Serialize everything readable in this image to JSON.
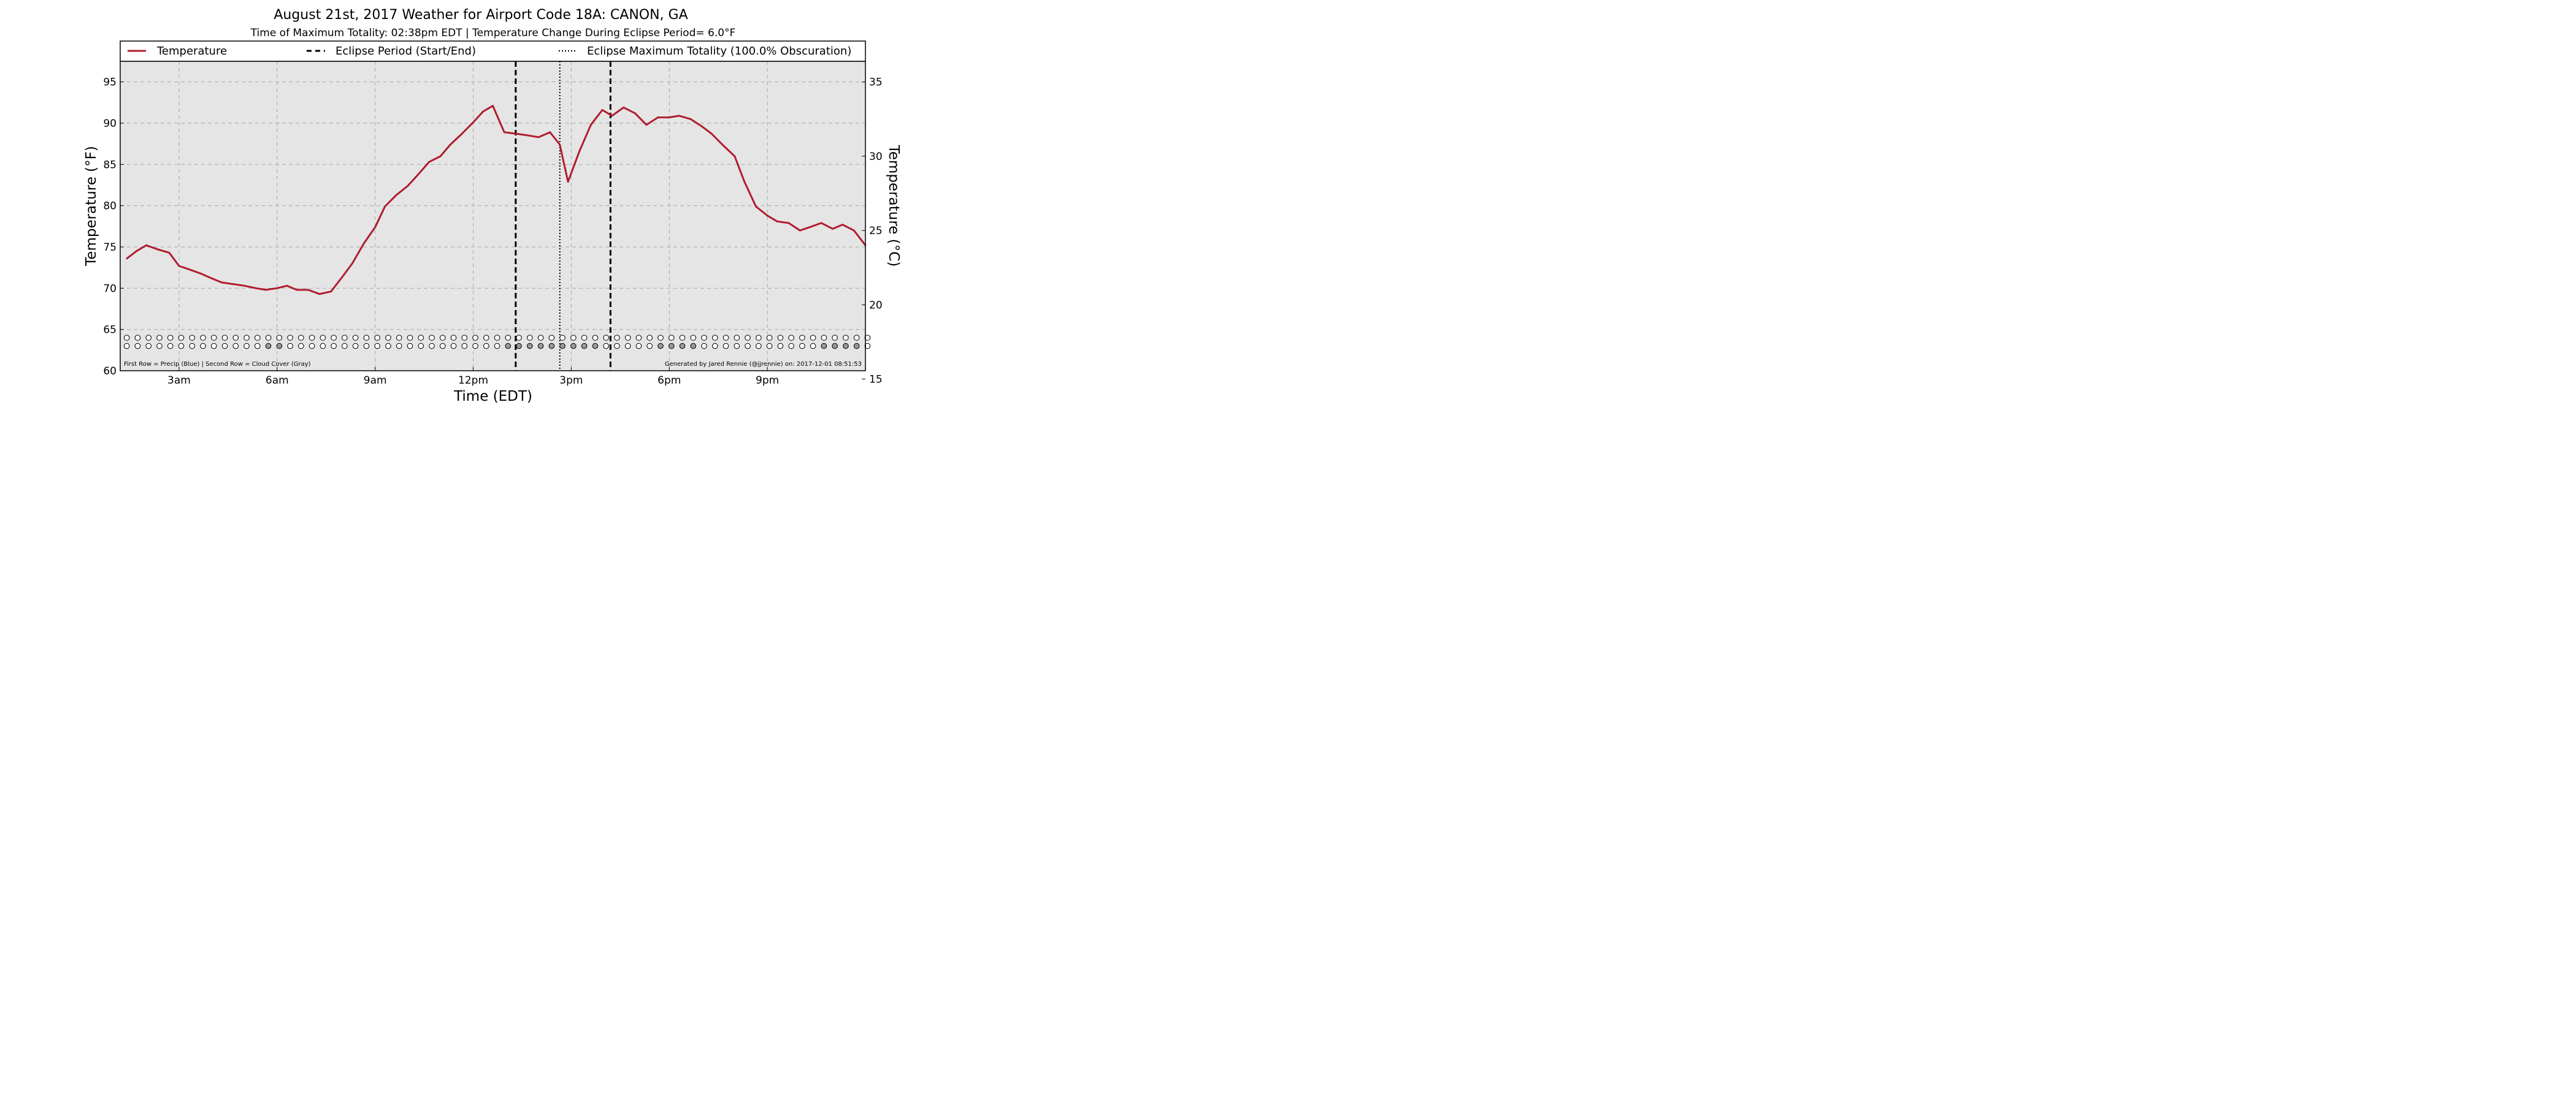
{
  "chart_data": {
    "type": "line",
    "title": "August 21st, 2017 Weather for Airport Code 18A: CANON, GA",
    "subtitle": "Time of Maximum Totality: 02:38pm EDT | Temperature Change During Eclipse Period= 6.0°F",
    "xlabel": "Time (EDT)",
    "ylabel": "Temperature (°F)",
    "ylabel_right": "Temperature (°C)",
    "xlim": [
      1.2,
      24.0
    ],
    "ylim": [
      60,
      97.5
    ],
    "ylim_right": [
      15.56,
      36.39
    ],
    "x_unit": "hours since midnight EDT",
    "x_ticks": [
      {
        "x": 3,
        "label": "3am"
      },
      {
        "x": 6,
        "label": "6am"
      },
      {
        "x": 9,
        "label": "9am"
      },
      {
        "x": 12,
        "label": "12pm"
      },
      {
        "x": 15,
        "label": "3pm"
      },
      {
        "x": 18,
        "label": "6pm"
      },
      {
        "x": 21,
        "label": "9pm"
      }
    ],
    "y_ticks": [
      60,
      65,
      70,
      75,
      80,
      85,
      90,
      95
    ],
    "y_ticks_right": [
      15,
      20,
      25,
      30,
      35
    ],
    "grid": true,
    "legend_position": "top",
    "legend": [
      {
        "label": "Temperature",
        "style": "solid",
        "color": "#b01c2e"
      },
      {
        "label": "Eclipse Period (Start/End)",
        "style": "dashed",
        "color": "#000000"
      },
      {
        "label": "Eclipse Maximum Totality (100.0% Obscuration)",
        "style": "dotted",
        "color": "#000000"
      }
    ],
    "series": [
      {
        "name": "Temperature",
        "color": "#b01c2e",
        "points": [
          [
            1.4,
            73.6
          ],
          [
            1.7,
            74.5
          ],
          [
            2.0,
            75.2
          ],
          [
            2.35,
            74.7
          ],
          [
            2.7,
            74.3
          ],
          [
            3.0,
            72.7
          ],
          [
            3.3,
            72.3
          ],
          [
            3.65,
            71.8
          ],
          [
            4.0,
            71.2
          ],
          [
            4.3,
            70.7
          ],
          [
            4.65,
            70.5
          ],
          [
            5.0,
            70.3
          ],
          [
            5.35,
            70.0
          ],
          [
            5.65,
            69.8
          ],
          [
            6.0,
            70.0
          ],
          [
            6.3,
            70.3
          ],
          [
            6.6,
            69.8
          ],
          [
            6.95,
            69.8
          ],
          [
            7.3,
            69.3
          ],
          [
            7.65,
            69.6
          ],
          [
            8.0,
            71.4
          ],
          [
            8.3,
            73.0
          ],
          [
            8.65,
            75.4
          ],
          [
            9.0,
            77.4
          ],
          [
            9.3,
            79.9
          ],
          [
            9.65,
            81.3
          ],
          [
            10.0,
            82.4
          ],
          [
            10.3,
            83.7
          ],
          [
            10.65,
            85.3
          ],
          [
            11.0,
            86.0
          ],
          [
            11.3,
            87.4
          ],
          [
            11.65,
            88.7
          ],
          [
            12.0,
            90.1
          ],
          [
            12.3,
            91.4
          ],
          [
            12.6,
            92.1
          ],
          [
            12.95,
            88.9
          ],
          [
            13.35,
            88.7
          ],
          [
            13.7,
            88.5
          ],
          [
            14.0,
            88.3
          ],
          [
            14.35,
            88.9
          ],
          [
            14.65,
            87.4
          ],
          [
            14.9,
            82.9
          ],
          [
            15.25,
            86.6
          ],
          [
            15.6,
            89.8
          ],
          [
            15.95,
            91.6
          ],
          [
            16.25,
            90.9
          ],
          [
            16.6,
            91.9
          ],
          [
            16.95,
            91.2
          ],
          [
            17.3,
            89.8
          ],
          [
            17.65,
            90.7
          ],
          [
            18.0,
            90.7
          ],
          [
            18.3,
            90.9
          ],
          [
            18.65,
            90.5
          ],
          [
            19.0,
            89.6
          ],
          [
            19.3,
            88.7
          ],
          [
            19.65,
            87.3
          ],
          [
            20.0,
            86.0
          ],
          [
            20.3,
            82.9
          ],
          [
            20.65,
            79.9
          ],
          [
            21.0,
            78.8
          ],
          [
            21.3,
            78.1
          ],
          [
            21.65,
            77.9
          ],
          [
            22.0,
            77.0
          ],
          [
            22.3,
            77.4
          ],
          [
            22.65,
            77.9
          ],
          [
            23.0,
            77.2
          ],
          [
            23.3,
            77.7
          ],
          [
            23.65,
            77.0
          ],
          [
            24.0,
            75.2
          ]
        ]
      }
    ],
    "eclipse_lines": {
      "start": {
        "x": 13.3,
        "style": "dashed"
      },
      "max": {
        "x": 14.65,
        "style": "dotted"
      },
      "end": {
        "x": 16.2,
        "style": "dashed"
      }
    },
    "indicator_rows": {
      "y_precip": 64.0,
      "y_cloud": 63.0,
      "x_start": 1.4,
      "x_step": 0.3333,
      "count": 69,
      "precip_filled": [],
      "cloud_filled_indices": [
        13,
        14,
        35,
        36,
        37,
        38,
        39,
        40,
        41,
        42,
        43,
        49,
        50,
        51,
        52,
        64,
        65,
        66,
        67
      ],
      "empty_color": "#ffffff",
      "cloud_color": "#999999",
      "precip_color": "#1f5fbf"
    },
    "footer_left": "First Row = Precip (Blue) | Second Row = Cloud Cover (Gray)",
    "footer_right": "Generated by Jared Rennie (@jjrennie) on: 2017-12-01 08:51:53",
    "colors": {
      "plot_background": "#e5e5e5",
      "grid": "#a8a8a8",
      "line": "#b01c2e"
    }
  }
}
